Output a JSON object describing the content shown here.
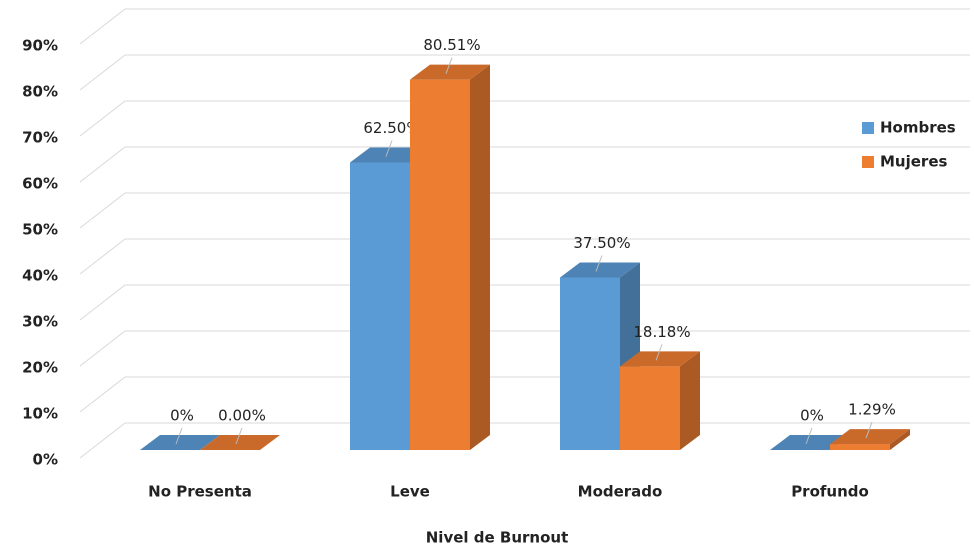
{
  "chart_data": {
    "type": "bar3d",
    "x_label": "Nivel de Burnout",
    "categories": [
      "No Presenta",
      "Leve",
      "Moderado",
      "Profundo"
    ],
    "series": [
      {
        "name": "Hombres",
        "color": "#5b9bd5",
        "values": [
          0,
          62.5,
          37.5,
          0
        ],
        "value_labels": [
          "0%",
          "62.50%",
          "37.50%",
          "0%"
        ]
      },
      {
        "name": "Mujeres",
        "color": "#ed7d31",
        "values": [
          0,
          80.51,
          18.18,
          1.29
        ],
        "value_labels": [
          "0.00%",
          "80.51%",
          "18.18%",
          "1.29%"
        ]
      }
    ],
    "ylim": [
      0,
      90
    ],
    "yticks": [
      {
        "value": 0,
        "label": "0%"
      },
      {
        "value": 10,
        "label": "10%"
      },
      {
        "value": 20,
        "label": "20%"
      },
      {
        "value": 30,
        "label": "30%"
      },
      {
        "value": 40,
        "label": "40%"
      },
      {
        "value": 50,
        "label": "50%"
      },
      {
        "value": 60,
        "label": "60%"
      },
      {
        "value": 70,
        "label": "70%"
      },
      {
        "value": 80,
        "label": "80%"
      },
      {
        "value": 90,
        "label": "90%"
      }
    ],
    "grid": true,
    "legend": "right"
  }
}
